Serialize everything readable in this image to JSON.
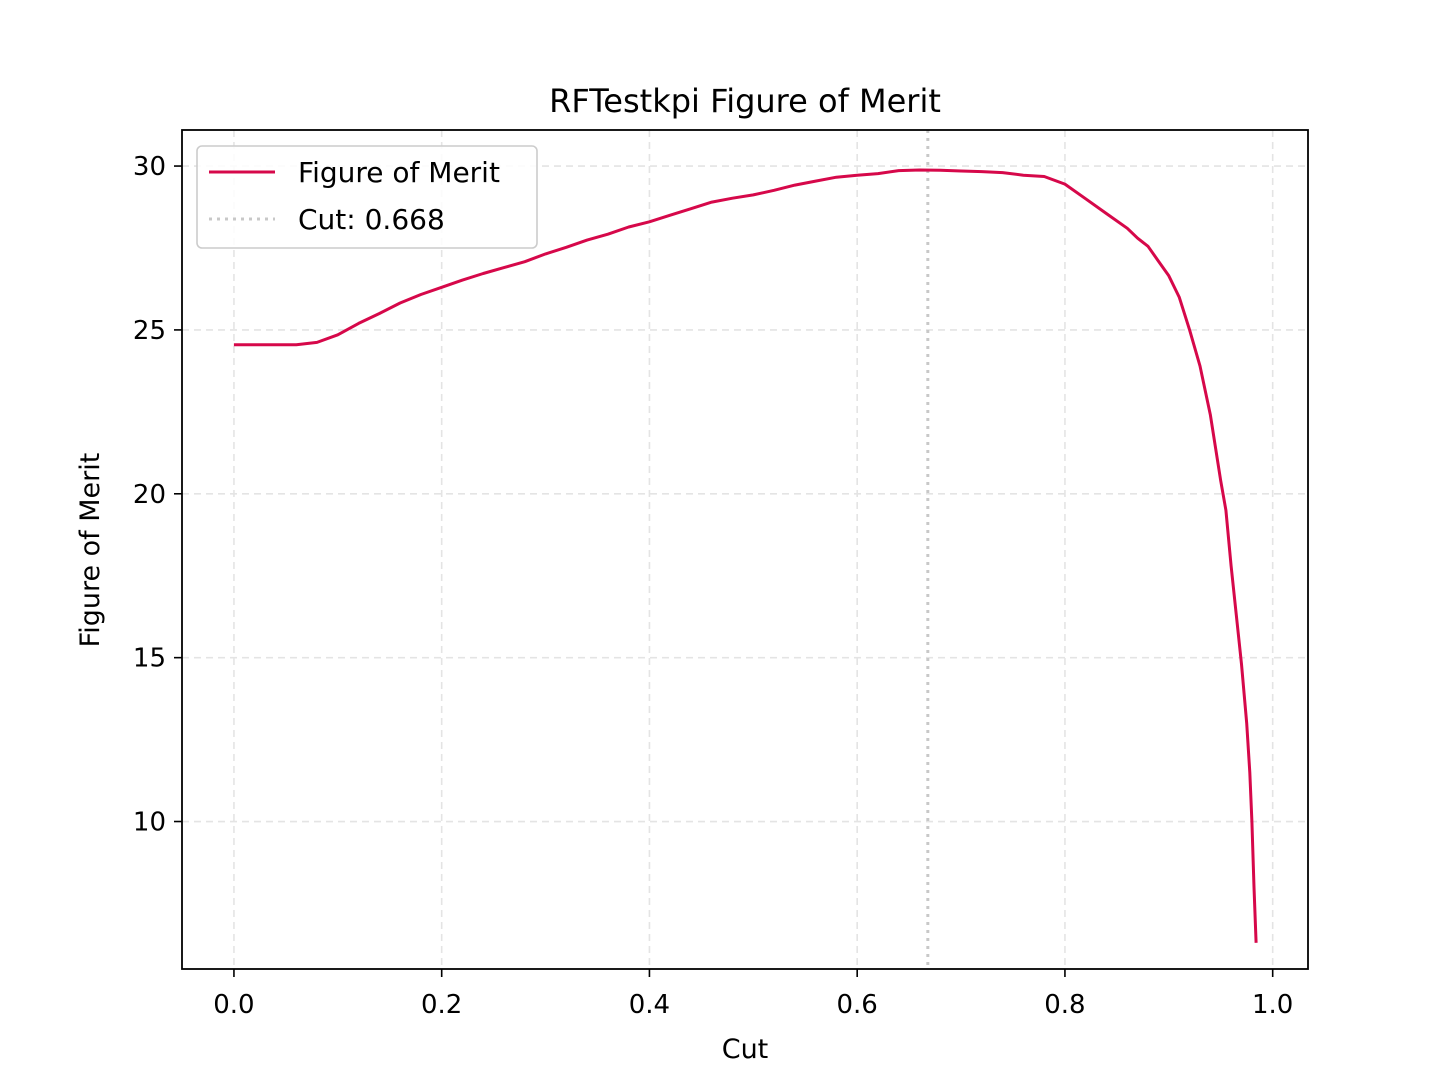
{
  "chart_data": {
    "type": "line",
    "title": "RFTestkpi Figure of Merit",
    "xlabel": "Cut",
    "ylabel": "Figure of Merit",
    "xlim": [
      -0.05,
      1.034
    ],
    "ylim": [
      5.5,
      31.1
    ],
    "x_ticks": [
      0.0,
      0.2,
      0.4,
      0.6,
      0.8,
      1.0
    ],
    "x_tick_labels": [
      "0.0",
      "0.2",
      "0.4",
      "0.6",
      "0.8",
      "1.0"
    ],
    "y_ticks": [
      10,
      15,
      20,
      25,
      30
    ],
    "y_tick_labels": [
      "10",
      "15",
      "20",
      "25",
      "30"
    ],
    "grid": true,
    "legend_position": "top-left",
    "colors": {
      "series": "#d6084a",
      "cut_line": "#c8c8c8",
      "grid": "#e4e4e4"
    },
    "series": [
      {
        "name": "Figure of Merit",
        "x": [
          0.0,
          0.02,
          0.04,
          0.06,
          0.08,
          0.1,
          0.12,
          0.14,
          0.16,
          0.18,
          0.2,
          0.22,
          0.24,
          0.26,
          0.28,
          0.3,
          0.32,
          0.34,
          0.36,
          0.38,
          0.4,
          0.42,
          0.44,
          0.46,
          0.48,
          0.5,
          0.52,
          0.54,
          0.56,
          0.58,
          0.6,
          0.62,
          0.64,
          0.66,
          0.68,
          0.7,
          0.72,
          0.74,
          0.76,
          0.78,
          0.8,
          0.82,
          0.84,
          0.86,
          0.87,
          0.88,
          0.89,
          0.9,
          0.91,
          0.92,
          0.93,
          0.94,
          0.95,
          0.955,
          0.96,
          0.965,
          0.97,
          0.975,
          0.978,
          0.98,
          0.982,
          0.984
        ],
        "y": [
          24.55,
          24.55,
          24.55,
          24.55,
          24.62,
          24.85,
          25.2,
          25.5,
          25.82,
          26.08,
          26.3,
          26.52,
          26.72,
          26.9,
          27.08,
          27.32,
          27.52,
          27.74,
          27.92,
          28.14,
          28.3,
          28.5,
          28.7,
          28.9,
          29.02,
          29.12,
          29.26,
          29.42,
          29.54,
          29.66,
          29.72,
          29.77,
          29.86,
          29.88,
          29.87,
          29.85,
          29.83,
          29.8,
          29.72,
          29.68,
          29.45,
          29.0,
          28.55,
          28.1,
          27.8,
          27.55,
          27.1,
          26.65,
          26.0,
          25.0,
          23.9,
          22.4,
          20.4,
          19.5,
          17.8,
          16.3,
          14.8,
          13.0,
          11.5,
          10.0,
          8.0,
          6.3
        ]
      }
    ],
    "vertical_line": {
      "name": "Cut: 0.668",
      "x": 0.668
    }
  }
}
